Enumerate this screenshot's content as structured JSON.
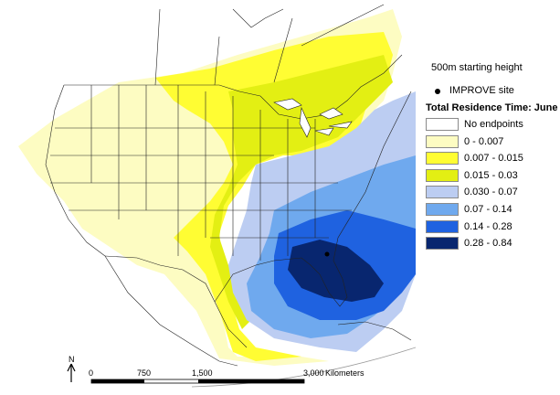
{
  "legend": {
    "height_label": "500m starting height",
    "site_label": "IMPROVE site",
    "title": "Total Residence Time: June",
    "classes": [
      {
        "label": "No endpoints",
        "color": "#ffffff"
      },
      {
        "label": "0 - 0.007",
        "color": "#fdfcc2"
      },
      {
        "label": "0.007 - 0.015",
        "color": "#fffd33"
      },
      {
        "label": "0.015 - 0.03",
        "color": "#e3ef13"
      },
      {
        "label": "0.030 - 0.07",
        "color": "#bccdf2"
      },
      {
        "label": "0.07 - 0.14",
        "color": "#6fa9ee"
      },
      {
        "label": "0.14 - 0.28",
        "color": "#1f62e0"
      },
      {
        "label": "0.28 - 0.84",
        "color": "#08266f"
      }
    ]
  },
  "scalebar": {
    "north": "N",
    "ticks": [
      "0",
      "750",
      "1,500",
      "3,000"
    ],
    "unit": "Kilometers"
  }
}
